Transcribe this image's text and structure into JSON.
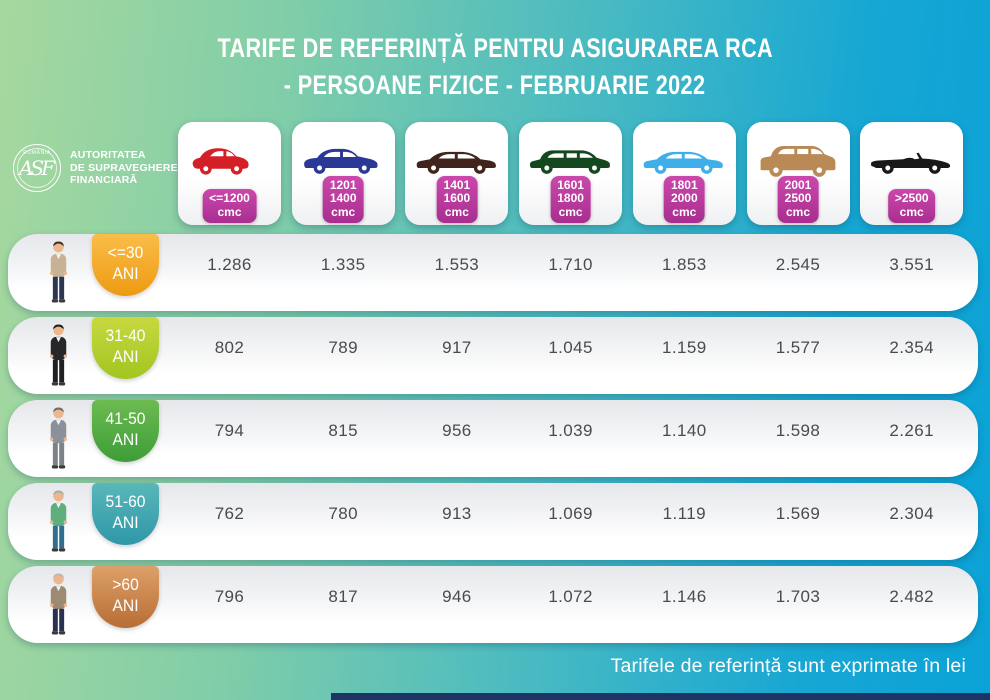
{
  "title": {
    "line1": "TARIFE DE REFERINȚĂ PENTRU ASIGURAREA RCA",
    "line2": "- PERSOANE FIZICE - FEBRUARIE 2022"
  },
  "logo": {
    "seal_top": "ROMÂNIA",
    "seal_monogram": "ASF",
    "name_line1": "AUTORITATEA",
    "name_line2": "DE SUPRAVEGHERE",
    "name_line3": "FINANCIARĂ"
  },
  "columns": [
    {
      "car": "city-car",
      "car_color": "#d41f26",
      "label_lines": [
        "<=1200",
        "cmc"
      ]
    },
    {
      "car": "hatchback",
      "car_color": "#2c3896",
      "label_lines": [
        "1201",
        "1400",
        "cmc"
      ]
    },
    {
      "car": "sedan",
      "car_color": "#41241b",
      "label_lines": [
        "1401",
        "1600",
        "cmc"
      ]
    },
    {
      "car": "wagon",
      "car_color": "#14481f",
      "label_lines": [
        "1601",
        "1800",
        "cmc"
      ]
    },
    {
      "car": "sedan",
      "car_color": "#3eafe8",
      "label_lines": [
        "1801",
        "2000",
        "cmc"
      ]
    },
    {
      "car": "suv",
      "car_color": "#b98a56",
      "label_lines": [
        "2001",
        "2500",
        "cmc"
      ]
    },
    {
      "car": "convertible",
      "car_color": "#191919",
      "label_lines": [
        ">2500",
        "cmc"
      ]
    }
  ],
  "rows": [
    {
      "age": "<=30",
      "unit": "ANI",
      "badge_top": "#f9bd49",
      "badge_bottom": "#ee9a12",
      "person": {
        "hair": "#453023",
        "top": "#c8b295",
        "pants": "#2c3552"
      },
      "values": [
        "1.286",
        "1.335",
        "1.553",
        "1.710",
        "1.853",
        "2.545",
        "3.551"
      ]
    },
    {
      "age": "31-40",
      "unit": "ANI",
      "badge_top": "#c6d93f",
      "badge_bottom": "#a2c521",
      "person": {
        "hair": "#20201f",
        "top": "#27272b",
        "pants": "#202024"
      },
      "values": [
        "802",
        "789",
        "917",
        "1.045",
        "1.159",
        "1.577",
        "2.354"
      ]
    },
    {
      "age": "41-50",
      "unit": "ANI",
      "badge_top": "#6cbb51",
      "badge_bottom": "#3e9d38",
      "person": {
        "hair": "#6f6b67",
        "top": "#8b909a",
        "pants": "#7d818a"
      },
      "values": [
        "794",
        "815",
        "956",
        "1.039",
        "1.140",
        "1.598",
        "2.261"
      ]
    },
    {
      "age": "51-60",
      "unit": "ANI",
      "badge_top": "#59b7b9",
      "badge_bottom": "#2f97a8",
      "person": {
        "hair": "#a9adae",
        "top": "#5fae7e",
        "pants": "#2f7090"
      },
      "values": [
        "762",
        "780",
        "913",
        "1.069",
        "1.119",
        "1.569",
        "2.304"
      ]
    },
    {
      "age": ">60",
      "unit": "ANI",
      "badge_top": "#dda06a",
      "badge_bottom": "#b86d33",
      "person": {
        "hair": "#bdb8b0",
        "top": "#9d8a73",
        "pants": "#283250"
      },
      "values": [
        "796",
        "817",
        "946",
        "1.072",
        "1.146",
        "1.703",
        "2.482"
      ]
    }
  ],
  "footer_note": "Tarifele de referință sunt exprimate în lei",
  "styles": {
    "cmc_badge_top": "#cb48ab",
    "cmc_badge_bottom": "#a82e90",
    "value_color": "#4a4b4d",
    "accent_blue": "#0aa2d7",
    "accent_green": "#a6d89e"
  },
  "chart_data": {
    "type": "table",
    "title": "TARIFE DE REFERINȚĂ PENTRU ASIGURAREA RCA - PERSOANE FIZICE - FEBRUARIE 2022",
    "column_headers": [
      "<=1200 cmc",
      "1201-1400 cmc",
      "1401-1600 cmc",
      "1601-1800 cmc",
      "1801-2000 cmc",
      "2001-2500 cmc",
      ">2500 cmc"
    ],
    "row_headers": [
      "<=30 ANI",
      "31-40 ANI",
      "41-50 ANI",
      "51-60 ANI",
      ">60 ANI"
    ],
    "values": [
      [
        1286,
        1335,
        1553,
        1710,
        1853,
        2545,
        3551
      ],
      [
        802,
        789,
        917,
        1045,
        1159,
        1577,
        2354
      ],
      [
        794,
        815,
        956,
        1039,
        1140,
        1598,
        2261
      ],
      [
        762,
        780,
        913,
        1069,
        1119,
        1569,
        2304
      ],
      [
        796,
        817,
        946,
        1072,
        1146,
        1703,
        2482
      ]
    ],
    "unit": "lei",
    "note": "Tarifele de referință sunt exprimate în lei"
  }
}
